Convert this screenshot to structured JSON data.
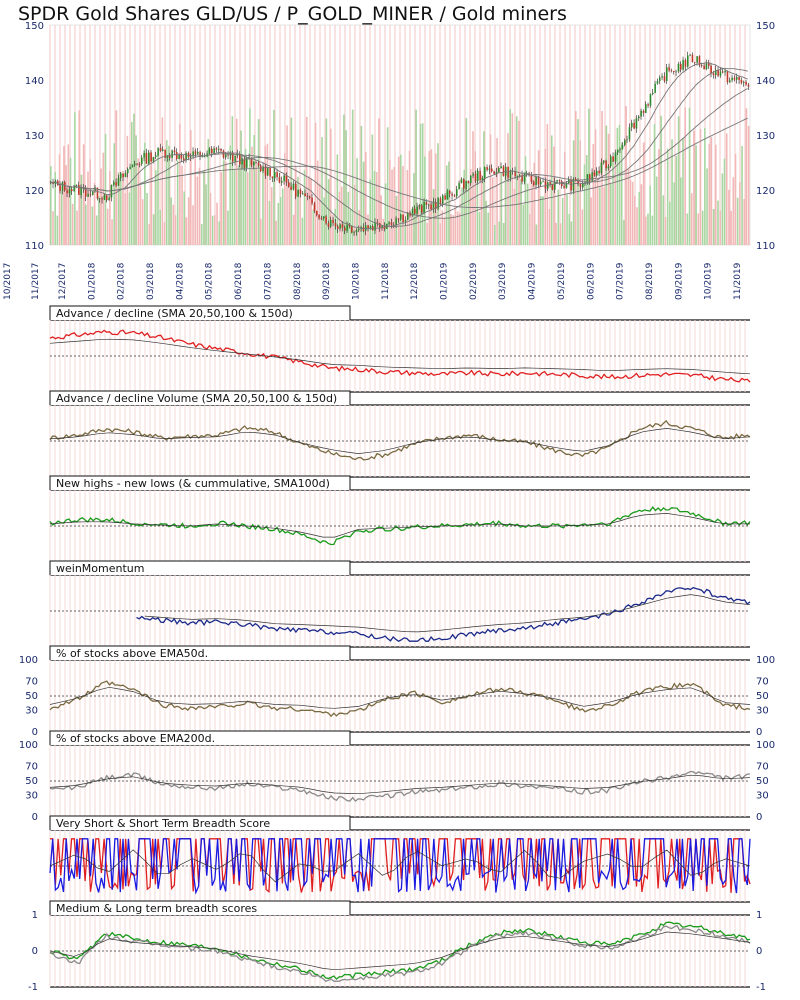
{
  "title": "SPDR Gold Shares GLD/US / P_GOLD_MINER / Gold miners",
  "chart_data": {
    "type": "line",
    "x_dates": [
      "10/2017",
      "11/2017",
      "12/2017",
      "01/2018",
      "02/2018",
      "03/2018",
      "04/2018",
      "05/2018",
      "06/2018",
      "07/2018",
      "08/2018",
      "09/2018",
      "10/2018",
      "11/2018",
      "12/2018",
      "01/2019",
      "02/2019",
      "03/2019",
      "04/2019",
      "05/2019",
      "06/2019",
      "07/2019",
      "08/2019",
      "09/2019",
      "10/2019",
      "11/2019"
    ],
    "price_panel": {
      "y_ticks": [
        "150",
        "140",
        "130",
        "120",
        "110"
      ],
      "ylim": [
        110,
        150
      ],
      "price_by_month": [
        121,
        120,
        119,
        125,
        127,
        126,
        127,
        125,
        123,
        119,
        114,
        113,
        114,
        116,
        118,
        122,
        124,
        122,
        121,
        121,
        125,
        133,
        141,
        144,
        141,
        139
      ],
      "sma_overlays": [
        "SMA 20",
        "SMA 50",
        "SMA 100",
        "SMA 150"
      ],
      "colors": {
        "up": "#2e8b2e",
        "down": "#c0392b",
        "volume_up": "#a8d5a0",
        "volume_down": "#f2b8b8",
        "sma": "#777777"
      }
    },
    "panels": [
      {
        "id": "adv-decline",
        "label": "Advance / decline (SMA 20,50,100 & 150d)",
        "color": "#e02020",
        "values": [
          0.8,
          0.85,
          0.9,
          0.88,
          0.8,
          0.7,
          0.62,
          0.55,
          0.48,
          0.4,
          0.3,
          0.28,
          0.24,
          0.22,
          0.2,
          0.22,
          0.2,
          0.22,
          0.2,
          0.18,
          0.15,
          0.18,
          0.2,
          0.18,
          0.12,
          0.08
        ]
      },
      {
        "id": "adv-decline-volume",
        "label": "Advance / decline Volume (SMA 20,50,100 & 150d)",
        "color": "#7a6a40",
        "values": [
          0.55,
          0.6,
          0.7,
          0.65,
          0.55,
          0.58,
          0.6,
          0.72,
          0.65,
          0.45,
          0.3,
          0.2,
          0.28,
          0.45,
          0.55,
          0.6,
          0.52,
          0.48,
          0.35,
          0.25,
          0.4,
          0.7,
          0.8,
          0.7,
          0.55,
          0.6
        ]
      },
      {
        "id": "highs-lows",
        "label": "New highs - new lows (& cummulative, SMA100d)",
        "color": "#1a9a1a",
        "values": [
          0.55,
          0.6,
          0.6,
          0.55,
          0.52,
          0.5,
          0.55,
          0.5,
          0.45,
          0.35,
          0.2,
          0.42,
          0.45,
          0.48,
          0.5,
          0.52,
          0.55,
          0.5,
          0.5,
          0.52,
          0.55,
          0.75,
          0.8,
          0.7,
          0.55,
          0.55
        ]
      },
      {
        "id": "weinmomentum",
        "label": "weinMomentum",
        "color": "#1a2a8a",
        "values": [
          null,
          null,
          null,
          0.4,
          0.35,
          0.3,
          0.32,
          0.28,
          0.2,
          0.18,
          0.15,
          0.12,
          0.05,
          0.0,
          0.05,
          0.12,
          0.18,
          0.22,
          0.3,
          0.35,
          0.45,
          0.62,
          0.8,
          0.9,
          0.72,
          0.65
        ]
      },
      {
        "id": "ema50",
        "label": "% of stocks above EMA50d.",
        "color": "#7a6a40",
        "y_ticks_left": [
          "100",
          "70",
          "50",
          "30",
          "0"
        ],
        "y_ticks_right": [
          "100",
          "70",
          "50",
          "30",
          "0"
        ],
        "ylim": [
          0,
          100
        ],
        "values": [
          30,
          45,
          72,
          60,
          35,
          30,
          32,
          38,
          30,
          28,
          20,
          25,
          45,
          55,
          40,
          50,
          62,
          55,
          45,
          25,
          35,
          55,
          65,
          70,
          35,
          30
        ]
      },
      {
        "id": "ema200",
        "label": "% of stocks above EMA200d.",
        "color": "#8a8a8a",
        "y_ticks_left": [
          "100",
          "70",
          "50",
          "30",
          "0"
        ],
        "y_ticks_right": [
          "100",
          "70",
          "50",
          "30",
          "0"
        ],
        "ylim": [
          0,
          100
        ],
        "values": [
          35,
          40,
          55,
          60,
          45,
          40,
          38,
          45,
          40,
          35,
          22,
          20,
          25,
          32,
          35,
          40,
          45,
          42,
          38,
          32,
          35,
          48,
          55,
          65,
          55,
          58
        ]
      },
      {
        "id": "short-breadth",
        "label": "Very Short & Short Term Breadth Score",
        "colors": [
          "#e02020",
          "#1a1ae0"
        ],
        "values": [
          0.5,
          0.8,
          0.3,
          0.9,
          0.2,
          0.7,
          0.4,
          0.9,
          0.1,
          0.6,
          0.3,
          0.8,
          0.2,
          0.9,
          0.5,
          0.7,
          0.3,
          0.9,
          0.1,
          0.6,
          0.8,
          0.4,
          0.9,
          0.2,
          0.7,
          0.5
        ]
      },
      {
        "id": "medium-long-breadth",
        "label": "Medium & Long term breadth scores",
        "colors": [
          "#1a9a1a",
          "#8a8a8a"
        ],
        "y_ticks_left": [
          "1",
          "0",
          "-1"
        ],
        "y_ticks_right": [
          "1",
          "0",
          "-1"
        ],
        "ylim": [
          -1,
          1
        ],
        "values": [
          0.0,
          -0.3,
          0.6,
          0.4,
          0.3,
          0.2,
          0.1,
          -0.2,
          -0.4,
          -0.6,
          -0.9,
          -0.8,
          -0.7,
          -0.6,
          -0.3,
          0.2,
          0.6,
          0.7,
          0.5,
          0.3,
          0.2,
          0.5,
          0.9,
          0.8,
          0.6,
          0.4
        ]
      }
    ]
  }
}
